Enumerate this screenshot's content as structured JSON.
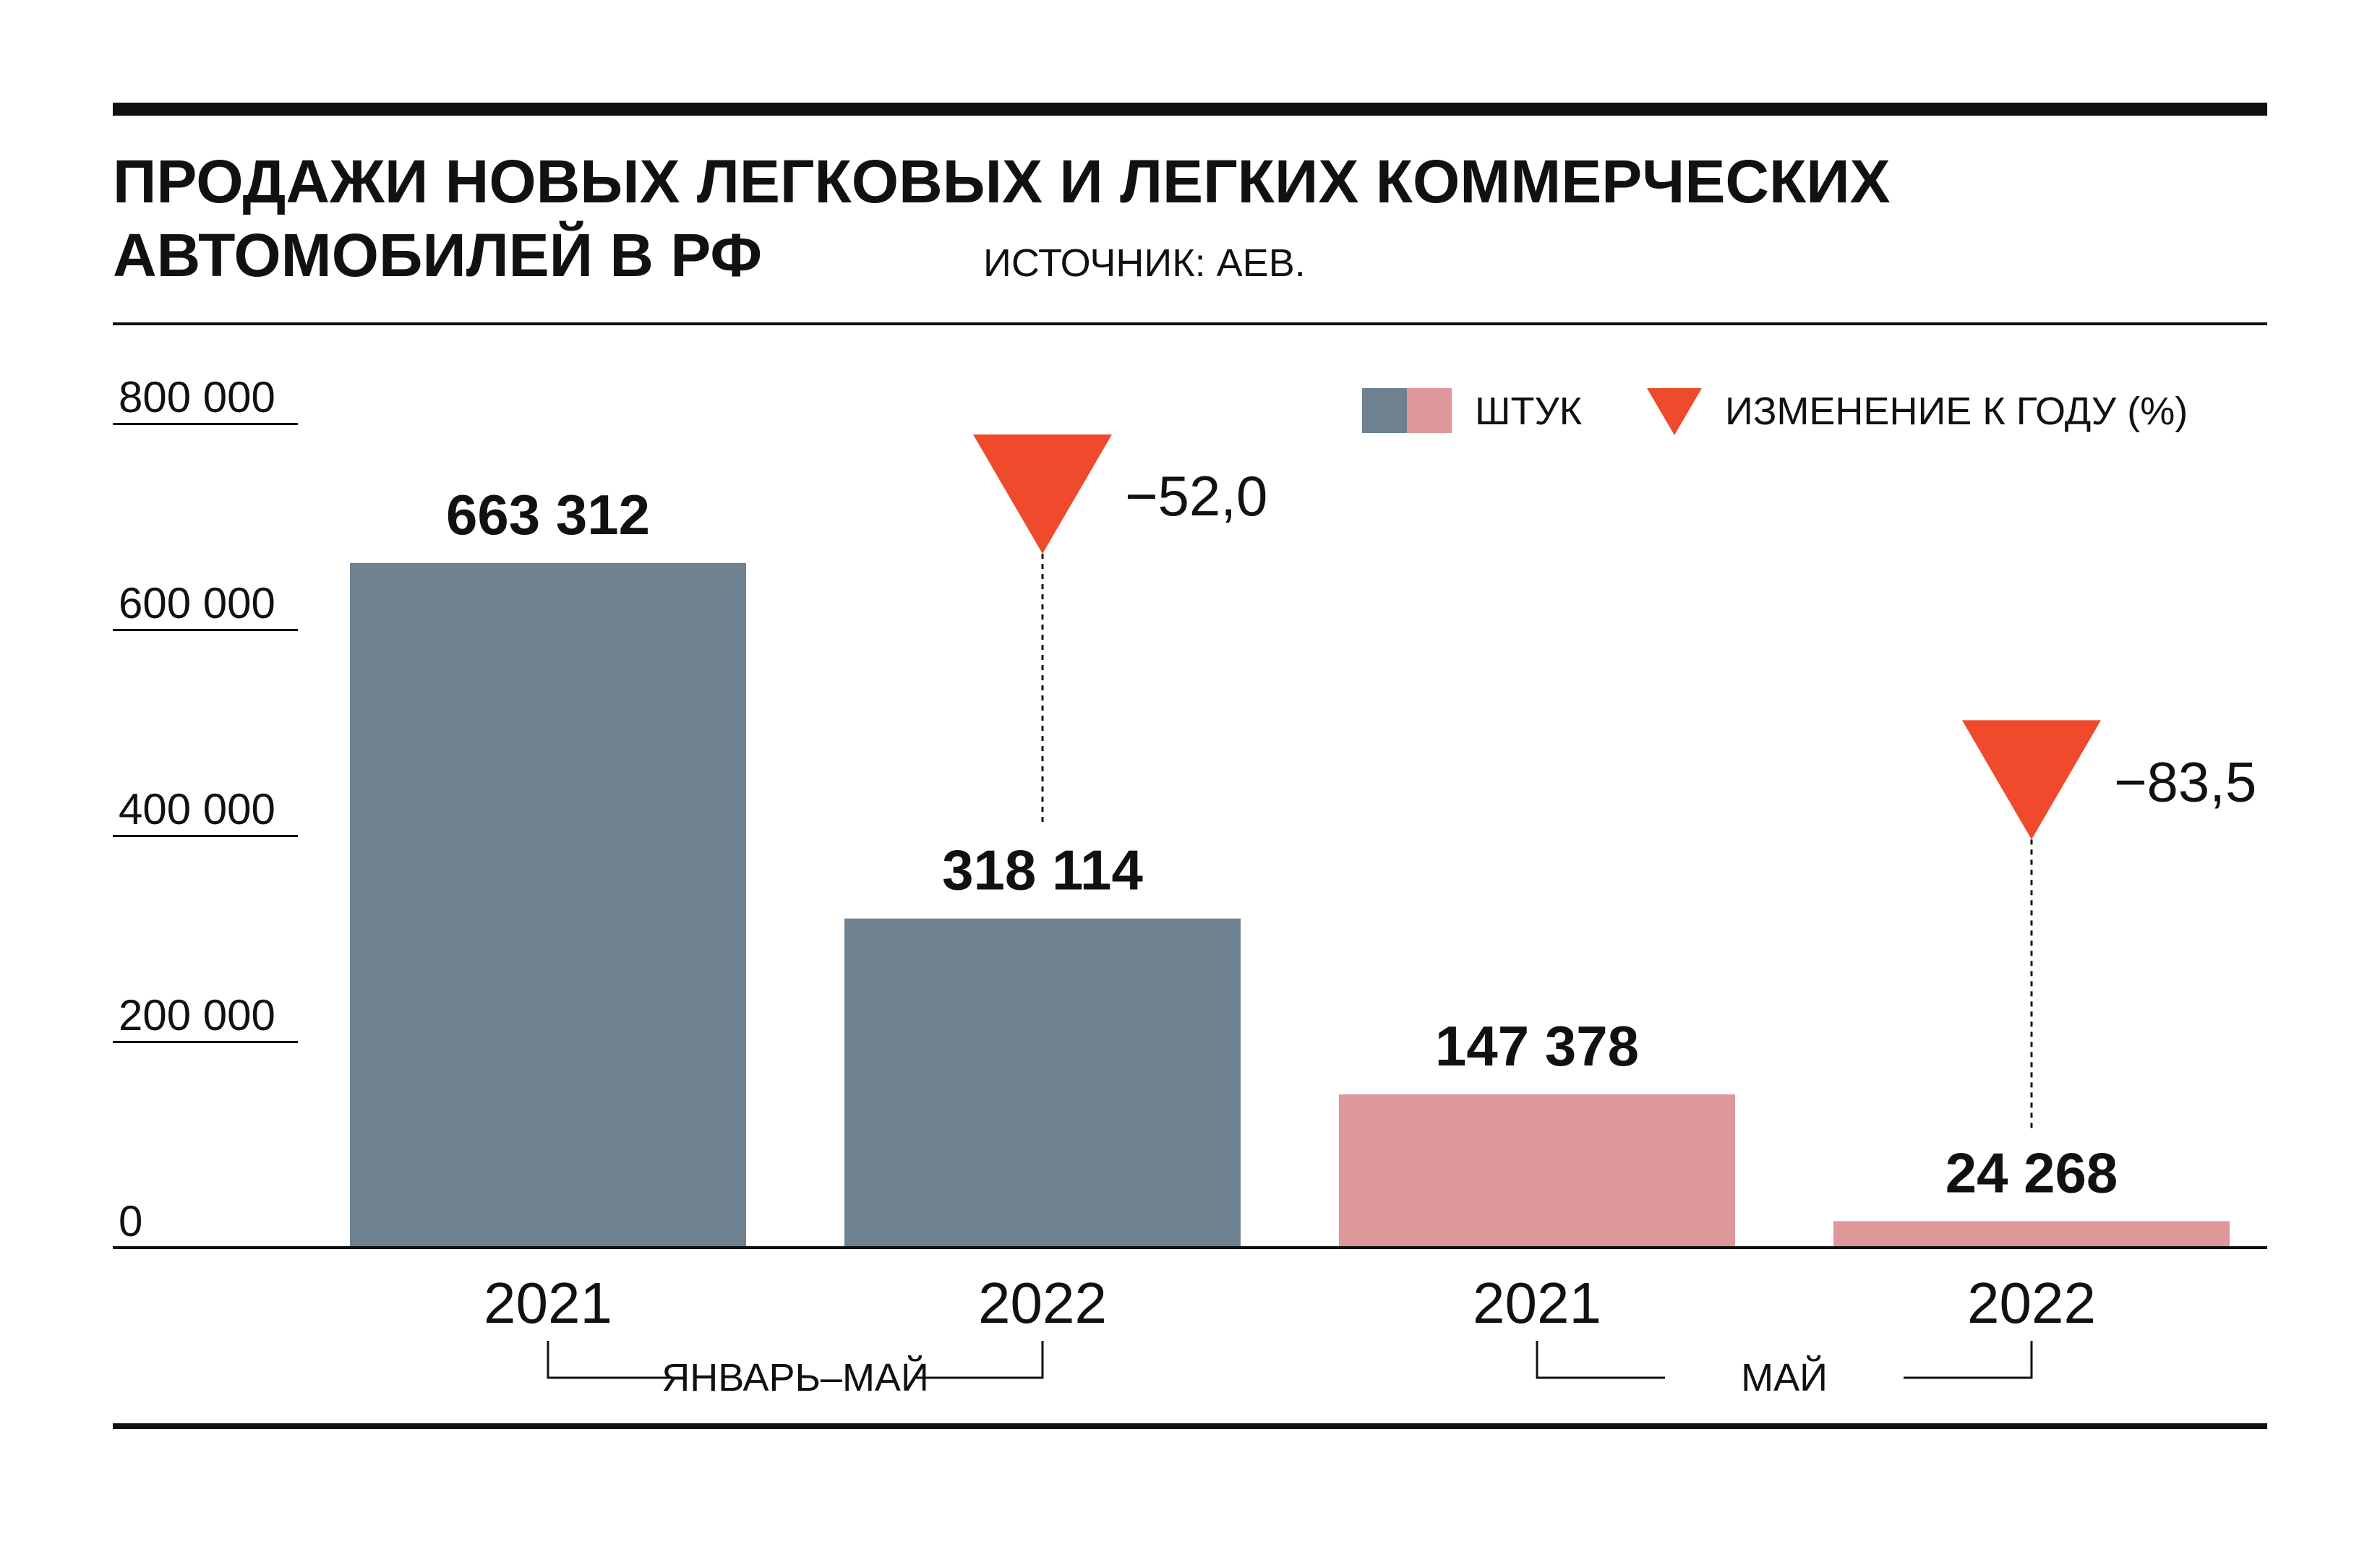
{
  "title_line1": "ПРОДАЖИ НОВЫХ ЛЕГКОВЫХ И ЛЕГКИХ КОММЕРЧЕСКИХ",
  "title_line2": "АВТОМОБИЛЕЙ В РФ",
  "source": "ИСТОЧНИК: АЕВ.",
  "legend": {
    "units_label": "ШТУК",
    "change_label": "ИЗМЕНЕНИЕ К ГОДУ (%)"
  },
  "colors": {
    "period_bar": "#6e8190",
    "month_bar": "#de979a",
    "change_marker": "#ef4a2c",
    "ink": "#111111"
  },
  "chart_data": {
    "type": "bar",
    "categories": [
      "2021",
      "2022",
      "2021",
      "2022"
    ],
    "groups": [
      {
        "label": "ЯНВАРЬ–МАЙ",
        "categories": [
          0,
          1
        ]
      },
      {
        "label": "МАЙ",
        "categories": [
          2,
          3
        ]
      }
    ],
    "values": [
      663312,
      318114,
      147378,
      24268
    ],
    "value_labels": [
      "663 312",
      "318 114",
      "147 378",
      "24 268"
    ],
    "changes": [
      {
        "category": 1,
        "value": -52.0,
        "label": "−52,0"
      },
      {
        "category": 3,
        "value": -83.5,
        "label": "−83,5"
      }
    ],
    "yticks": [
      0,
      200000,
      400000,
      600000,
      800000
    ],
    "ytick_labels": [
      "0",
      "200 000",
      "400 000",
      "600 000",
      "800 000"
    ],
    "ylim": [
      0,
      800000
    ],
    "legend_position": "top-right",
    "grid": false
  }
}
